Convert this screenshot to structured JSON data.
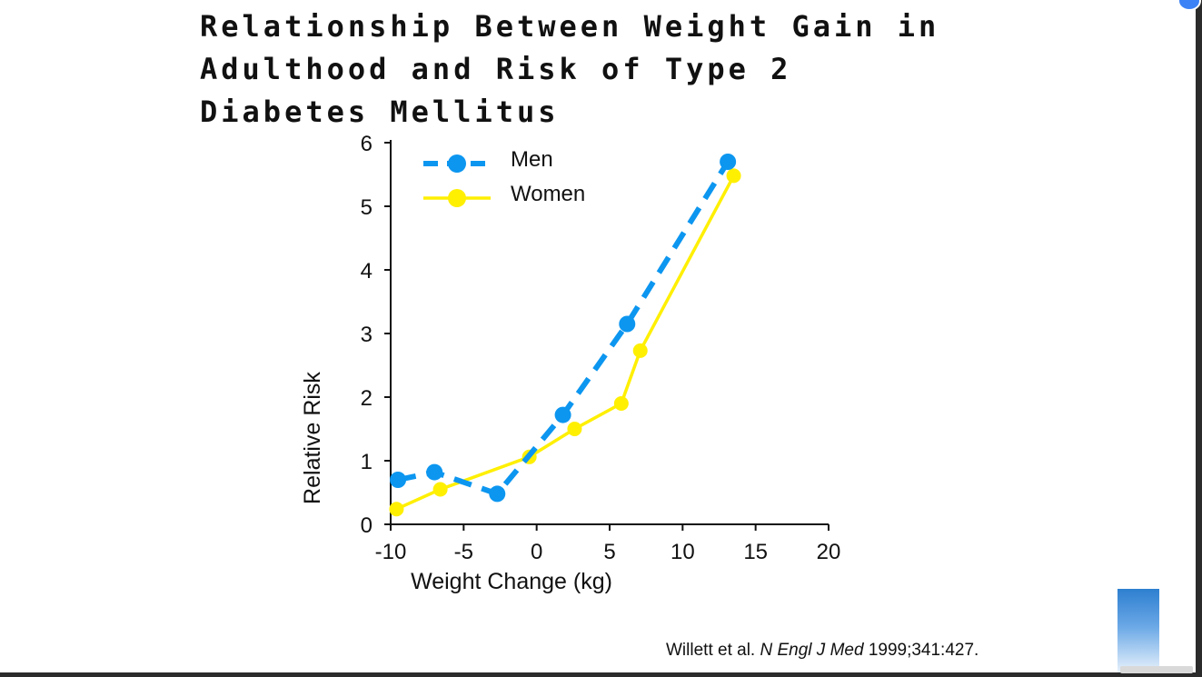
{
  "slide": {
    "title": "Relationship Between Weight Gain in Adulthood and Risk of Type 2 Diabetes Mellitus",
    "citation": {
      "authors": "Willett et al.",
      "journal": "N Engl J Med",
      "ref": "1999;341:427."
    }
  },
  "colors": {
    "men": "#0c96f0",
    "women": "#ffef00",
    "axis": "#111111"
  },
  "chart_data": {
    "type": "line",
    "title": "Relationship Between Weight Gain in Adulthood and Risk of Type 2 Diabetes Mellitus",
    "xlabel": "Weight Change (kg)",
    "ylabel": "Relative Risk",
    "xlim": [
      -10,
      20
    ],
    "ylim": [
      0,
      6
    ],
    "xticks": [
      -10,
      -5,
      0,
      5,
      10,
      15,
      20
    ],
    "yticks": [
      0,
      1,
      2,
      3,
      4,
      5,
      6
    ],
    "grid": false,
    "legend": "top-left",
    "series": [
      {
        "name": "Men",
        "style": "dashed",
        "x": [
          -9.5,
          -7,
          -2.7,
          1.8,
          6.2,
          13.1
        ],
        "y": [
          0.7,
          0.82,
          0.48,
          1.72,
          3.15,
          5.7
        ]
      },
      {
        "name": "Women",
        "style": "solid",
        "x": [
          -9.6,
          -6.6,
          -0.5,
          2.6,
          5.8,
          7.1,
          13.5
        ],
        "y": [
          0.24,
          0.55,
          1.06,
          1.5,
          1.9,
          2.73,
          5.48
        ]
      }
    ]
  }
}
